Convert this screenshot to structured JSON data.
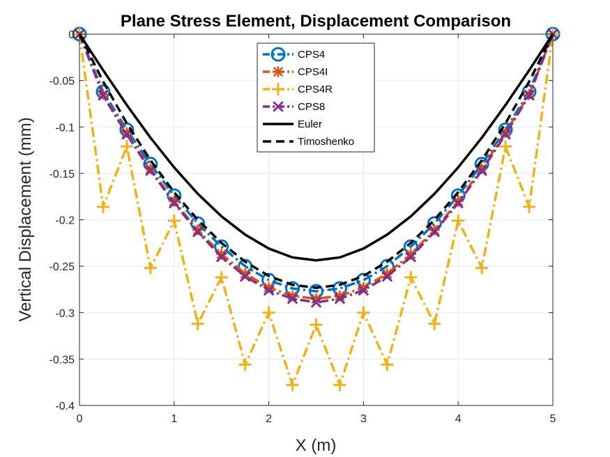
{
  "chart_data": {
    "type": "line",
    "title": "Plane Stress Element, Displacement Comparison",
    "xlabel": "X (m)",
    "ylabel": "Vertical Displacement (mm)",
    "xlim": [
      0,
      5
    ],
    "ylim": [
      -0.4,
      0
    ],
    "xticks": [
      0,
      1,
      2,
      3,
      4,
      5
    ],
    "xtick_labels": [
      "0",
      "1",
      "2",
      "3",
      "4",
      "5"
    ],
    "yticks": [
      0,
      -0.05,
      -0.1,
      -0.15,
      -0.2,
      -0.25,
      -0.3,
      -0.35,
      -0.4
    ],
    "ytick_labels": [
      "0",
      "-0.05",
      "-0.1",
      "-0.15",
      "-0.2",
      "-0.25",
      "-0.3",
      "-0.35",
      "-0.4"
    ],
    "grid": true,
    "legend_position": "top-center",
    "series": [
      {
        "name": "CPS4",
        "color": "#0072BD",
        "marker": "circle",
        "line_style": "dash-dot",
        "x": [
          0,
          0.25,
          0.5,
          0.75,
          1,
          1.25,
          1.5,
          1.75,
          2,
          2.25,
          2.5,
          2.75,
          3,
          3.25,
          3.5,
          3.75,
          4,
          4.25,
          4.5,
          4.75,
          5
        ],
        "y": [
          0,
          -0.062,
          -0.103,
          -0.14,
          -0.174,
          -0.204,
          -0.229,
          -0.25,
          -0.265,
          -0.274,
          -0.277,
          -0.274,
          -0.265,
          -0.25,
          -0.229,
          -0.204,
          -0.174,
          -0.14,
          -0.103,
          -0.062,
          0
        ]
      },
      {
        "name": "CPS4I",
        "color": "#D95319",
        "marker": "asterisk",
        "line_style": "dash-dot",
        "x": [
          0,
          0.25,
          0.5,
          0.75,
          1,
          1.25,
          1.5,
          1.75,
          2,
          2.25,
          2.5,
          2.75,
          3,
          3.25,
          3.5,
          3.75,
          4,
          4.25,
          4.5,
          4.75,
          5
        ],
        "y": [
          0,
          -0.065,
          -0.106,
          -0.145,
          -0.18,
          -0.211,
          -0.237,
          -0.258,
          -0.273,
          -0.282,
          -0.285,
          -0.282,
          -0.273,
          -0.258,
          -0.237,
          -0.211,
          -0.18,
          -0.145,
          -0.106,
          -0.065,
          0
        ]
      },
      {
        "name": "CPS4R",
        "color": "#EDB120",
        "marker": "plus",
        "line_style": "dash-dot",
        "x": [
          0,
          0.25,
          0.5,
          0.75,
          1,
          1.25,
          1.5,
          1.75,
          2,
          2.25,
          2.5,
          2.75,
          3,
          3.25,
          3.5,
          3.75,
          4,
          4.25,
          4.5,
          4.75,
          5
        ],
        "y": [
          0,
          -0.186,
          -0.121,
          -0.252,
          -0.201,
          -0.312,
          -0.262,
          -0.356,
          -0.3,
          -0.378,
          -0.313,
          -0.378,
          -0.3,
          -0.356,
          -0.262,
          -0.312,
          -0.201,
          -0.252,
          -0.121,
          -0.186,
          0
        ]
      },
      {
        "name": "CPS8",
        "color": "#7E2F8E",
        "marker": "x",
        "line_style": "dash-dot",
        "x": [
          0,
          0.25,
          0.5,
          0.75,
          1,
          1.25,
          1.5,
          1.75,
          2,
          2.25,
          2.5,
          2.75,
          3,
          3.25,
          3.5,
          3.75,
          4,
          4.25,
          4.5,
          4.75,
          5
        ],
        "y": [
          0,
          -0.066,
          -0.108,
          -0.147,
          -0.182,
          -0.213,
          -0.24,
          -0.261,
          -0.276,
          -0.285,
          -0.289,
          -0.285,
          -0.276,
          -0.261,
          -0.24,
          -0.213,
          -0.182,
          -0.147,
          -0.108,
          -0.066,
          0
        ]
      },
      {
        "name": "Euler",
        "color": "#000000",
        "marker": "none",
        "line_style": "solid",
        "x": [
          0,
          0.25,
          0.5,
          0.75,
          1,
          1.25,
          1.5,
          1.75,
          2,
          2.25,
          2.5,
          2.75,
          3,
          3.25,
          3.5,
          3.75,
          4,
          4.25,
          4.5,
          4.75,
          5
        ],
        "y": [
          0,
          -0.0389,
          -0.0764,
          -0.1116,
          -0.1436,
          -0.172,
          -0.1963,
          -0.216,
          -0.231,
          -0.2405,
          -0.2437,
          -0.2405,
          -0.231,
          -0.216,
          -0.1963,
          -0.172,
          -0.1436,
          -0.1116,
          -0.0764,
          -0.0389,
          0
        ]
      },
      {
        "name": "Timoshenko",
        "color": "#000000",
        "marker": "none",
        "line_style": "dashed",
        "x": [
          0,
          0.25,
          0.5,
          0.75,
          1,
          1.25,
          1.5,
          1.75,
          2,
          2.25,
          2.5,
          2.75,
          3,
          3.25,
          3.5,
          3.75,
          4,
          4.25,
          4.5,
          4.75,
          5
        ],
        "y": [
          0,
          -0.0511,
          -0.0961,
          -0.1358,
          -0.1704,
          -0.2,
          -0.225,
          -0.2451,
          -0.2605,
          -0.2701,
          -0.2733,
          -0.2701,
          -0.2605,
          -0.2451,
          -0.225,
          -0.2,
          -0.1704,
          -0.1358,
          -0.0961,
          -0.0511,
          0
        ]
      }
    ]
  }
}
